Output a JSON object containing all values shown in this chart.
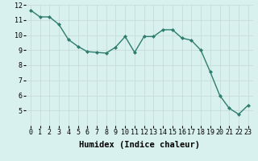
{
  "xlabel": "Humidex (Indice chaleur)",
  "x": [
    0,
    1,
    2,
    3,
    4,
    5,
    6,
    7,
    8,
    9,
    10,
    11,
    12,
    13,
    14,
    15,
    16,
    17,
    18,
    19,
    20,
    21,
    22,
    23
  ],
  "y": [
    11.65,
    11.2,
    11.2,
    10.7,
    9.7,
    9.25,
    8.9,
    8.85,
    8.8,
    9.2,
    9.9,
    8.85,
    9.9,
    9.9,
    10.35,
    10.35,
    9.8,
    9.65,
    9.0,
    7.55,
    6.0,
    5.15,
    4.75,
    5.35
  ],
  "line_color": "#2e7d6e",
  "marker": "D",
  "marker_size": 2.0,
  "bg_color": "#d8f0ee",
  "grid_color": "#c8dbd8",
  "xlim": [
    -0.5,
    23.5
  ],
  "ylim": [
    4,
    12
  ],
  "yticks": [
    5,
    6,
    7,
    8,
    9,
    10,
    11,
    12
  ],
  "xticks": [
    0,
    1,
    2,
    3,
    4,
    5,
    6,
    7,
    8,
    9,
    10,
    11,
    12,
    13,
    14,
    15,
    16,
    17,
    18,
    19,
    20,
    21,
    22,
    23
  ],
  "tick_fontsize": 6.0,
  "xlabel_fontsize": 7.5,
  "linewidth": 1.0
}
